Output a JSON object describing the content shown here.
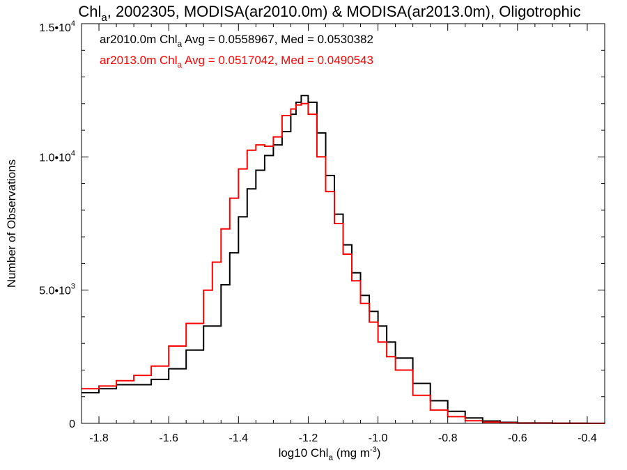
{
  "chart_data": {
    "type": "line",
    "step": true,
    "title": {
      "chl": "Chl",
      "sub": "a",
      "rest": ", 2002305, MODISA(ar2010.0m) & MODISA(ar2013.0m), Oligotrophic"
    },
    "xlabel": {
      "pre": "log10 Chl",
      "sub": "a",
      "mid": " (mg m",
      "sup": "-3",
      "post": ")"
    },
    "ylabel": "Number of Observations",
    "xlim": [
      -1.85,
      -0.35
    ],
    "ylim": [
      0,
      15000
    ],
    "x_ticks": [
      {
        "value": -1.8,
        "label": "-1.8"
      },
      {
        "value": -1.6,
        "label": "-1.6"
      },
      {
        "value": -1.4,
        "label": "-1.4"
      },
      {
        "value": -1.2,
        "label": "-1.2"
      },
      {
        "value": -1.0,
        "label": "-1.0"
      },
      {
        "value": -0.8,
        "label": "-0.8"
      },
      {
        "value": -0.6,
        "label": "-0.6"
      },
      {
        "value": -0.4,
        "label": "-0.4"
      }
    ],
    "y_ticks": [
      {
        "value": 0,
        "mant": "0",
        "exp": ""
      },
      {
        "value": 5000,
        "mant": "5.0•10",
        "exp": "3"
      },
      {
        "value": 10000,
        "mant": "1.0•10",
        "exp": "4"
      },
      {
        "value": 15000,
        "mant": "1.5•10",
        "exp": "4"
      }
    ],
    "x_minor_step": 0.05,
    "y_minor_step": 1000,
    "annotations": [
      {
        "pre": "ar2010.0m Chl",
        "sub": "a",
        "post": " Avg = 0.0558967, Med = 0.0530382",
        "color": "#000000"
      },
      {
        "pre": "ar2013.0m Chl",
        "sub": "a",
        "post": " Avg = 0.0517042, Med = 0.0490543",
        "color": "#ff0000"
      }
    ],
    "series": [
      {
        "color": "#000000",
        "x": [
          -1.85,
          -1.8,
          -1.75,
          -1.7,
          -1.65,
          -1.6,
          -1.55,
          -1.5,
          -1.45,
          -1.425,
          -1.4,
          -1.375,
          -1.35,
          -1.325,
          -1.3,
          -1.275,
          -1.25,
          -1.235,
          -1.22,
          -1.2,
          -1.175,
          -1.15,
          -1.125,
          -1.1,
          -1.075,
          -1.05,
          -1.025,
          -1.0,
          -0.975,
          -0.95,
          -0.9,
          -0.85,
          -0.8,
          -0.75,
          -0.7,
          -0.65,
          -0.6,
          -0.5,
          -0.4,
          -0.35
        ],
        "y": [
          1150,
          1300,
          1450,
          1450,
          1650,
          2050,
          2750,
          3650,
          5200,
          6400,
          7750,
          8800,
          9500,
          10050,
          10450,
          10950,
          11600,
          12050,
          12300,
          12050,
          10900,
          9300,
          7850,
          6700,
          5650,
          4800,
          4200,
          3650,
          3050,
          2450,
          1500,
          850,
          450,
          200,
          90,
          40,
          15,
          5,
          2,
          0
        ]
      },
      {
        "color": "#ff0000",
        "x": [
          -1.85,
          -1.8,
          -1.75,
          -1.7,
          -1.65,
          -1.6,
          -1.55,
          -1.5,
          -1.475,
          -1.45,
          -1.425,
          -1.4,
          -1.375,
          -1.35,
          -1.325,
          -1.3,
          -1.275,
          -1.25,
          -1.235,
          -1.22,
          -1.2,
          -1.175,
          -1.15,
          -1.125,
          -1.1,
          -1.075,
          -1.05,
          -1.025,
          -1.0,
          -0.975,
          -0.95,
          -0.9,
          -0.85,
          -0.8,
          -0.75,
          -0.7,
          -0.65,
          -0.6,
          -0.5,
          -0.4,
          -0.35
        ],
        "y": [
          1300,
          1400,
          1600,
          1800,
          2150,
          2900,
          3750,
          5000,
          6050,
          7300,
          8450,
          9550,
          10250,
          10450,
          10400,
          10750,
          11550,
          11800,
          11950,
          12000,
          11600,
          10000,
          8700,
          7500,
          6350,
          5350,
          4500,
          3800,
          3050,
          2500,
          2000,
          1050,
          500,
          250,
          100,
          45,
          20,
          8,
          3,
          1,
          0
        ]
      }
    ]
  }
}
